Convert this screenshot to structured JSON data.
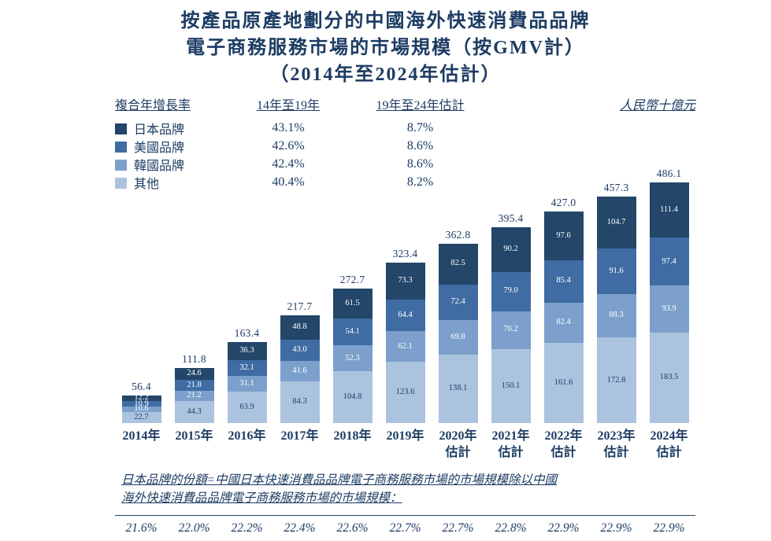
{
  "title": {
    "line1": "按產品原產地劃分的中國海外快速消費品品牌",
    "line2": "電子商務服務市場的市場規模（按GMV計）",
    "line3": "（2014年至2024年估計）"
  },
  "legend": {
    "header_metric": "複合年增長率",
    "header_period1": "14年至19年",
    "header_period2": "19年至24年估計",
    "unit_label": "人民幣十億元",
    "rows": [
      {
        "label": "日本品牌",
        "color": "#234669",
        "cagr1": "43.1%",
        "cagr2": "8.7%"
      },
      {
        "label": "美國品牌",
        "color": "#3E6CA3",
        "cagr1": "42.6%",
        "cagr2": "8.6%"
      },
      {
        "label": "韓國品牌",
        "color": "#7CA0CB",
        "cagr1": "42.4%",
        "cagr2": "8.6%"
      },
      {
        "label": "其他",
        "color": "#ACC3DF",
        "cagr1": "40.4%",
        "cagr2": "8.2%"
      }
    ]
  },
  "chart_data": {
    "type": "bar",
    "stacked": true,
    "title": "按產品原產地劃分的中國海外快速消費品品牌電子商務服務市場的市場規模（按GMV計）（2014年至2024年估計）",
    "unit": "人民幣十億元",
    "legend_position": "top-left",
    "grid": false,
    "ylim": [
      0,
      500
    ],
    "categories": [
      "2014年",
      "2015年",
      "2016年",
      "2017年",
      "2018年",
      "2019年",
      "2020年估計",
      "2021年估計",
      "2022年估計",
      "2023年估計",
      "2024年估計"
    ],
    "totals": [
      56.4,
      111.8,
      163.4,
      217.7,
      272.7,
      323.4,
      362.8,
      395.4,
      427.0,
      457.3,
      486.1
    ],
    "series": [
      {
        "name": "日本品牌",
        "key": "japan-brands",
        "color": "#234669",
        "label_color": "#ffffff",
        "values": [
          12.2,
          24.6,
          36.3,
          48.8,
          61.5,
          73.3,
          82.5,
          90.2,
          97.6,
          104.7,
          111.4
        ]
      },
      {
        "name": "美國品牌",
        "key": "us-brands",
        "color": "#3E6CA3",
        "label_color": "#ffffff",
        "values": [
          10.9,
          21.8,
          32.1,
          43.0,
          54.1,
          64.4,
          72.4,
          79.0,
          85.4,
          91.6,
          97.4
        ]
      },
      {
        "name": "韓國品牌",
        "key": "korea-brands",
        "color": "#7CA0CB",
        "label_color": "#ffffff",
        "values": [
          10.6,
          21.2,
          31.1,
          41.6,
          52.3,
          62.1,
          69.8,
          76.2,
          82.4,
          88.3,
          93.9
        ]
      },
      {
        "name": "其他",
        "key": "others",
        "color": "#ACC3DF",
        "label_color": "#1d3c63",
        "values": [
          22.7,
          44.3,
          63.9,
          84.3,
          104.8,
          123.6,
          138.1,
          150.1,
          161.6,
          172.8,
          183.5
        ]
      }
    ],
    "cagr": {
      "14年至19年": {
        "日本品牌": "43.1%",
        "美國品牌": "42.6%",
        "韓國品牌": "42.4%",
        "其他": "40.4%"
      },
      "19年至24年估計": {
        "日本品牌": "8.7%",
        "美國品牌": "8.6%",
        "韓國品牌": "8.6%",
        "其他": "8.2%"
      }
    }
  },
  "footnote": {
    "line1": "日本品牌的份額=中國日本快速消費品品牌電子商務服務市場的市場規模除以中國",
    "line2": "海外快速消費品品牌電子商務服務市場的市場規模："
  },
  "japan_share": {
    "values": [
      "21.6%",
      "22.0%",
      "22.2%",
      "22.4%",
      "22.6%",
      "22.7%",
      "22.7%",
      "22.8%",
      "22.9%",
      "22.9%",
      "22.9%"
    ]
  }
}
